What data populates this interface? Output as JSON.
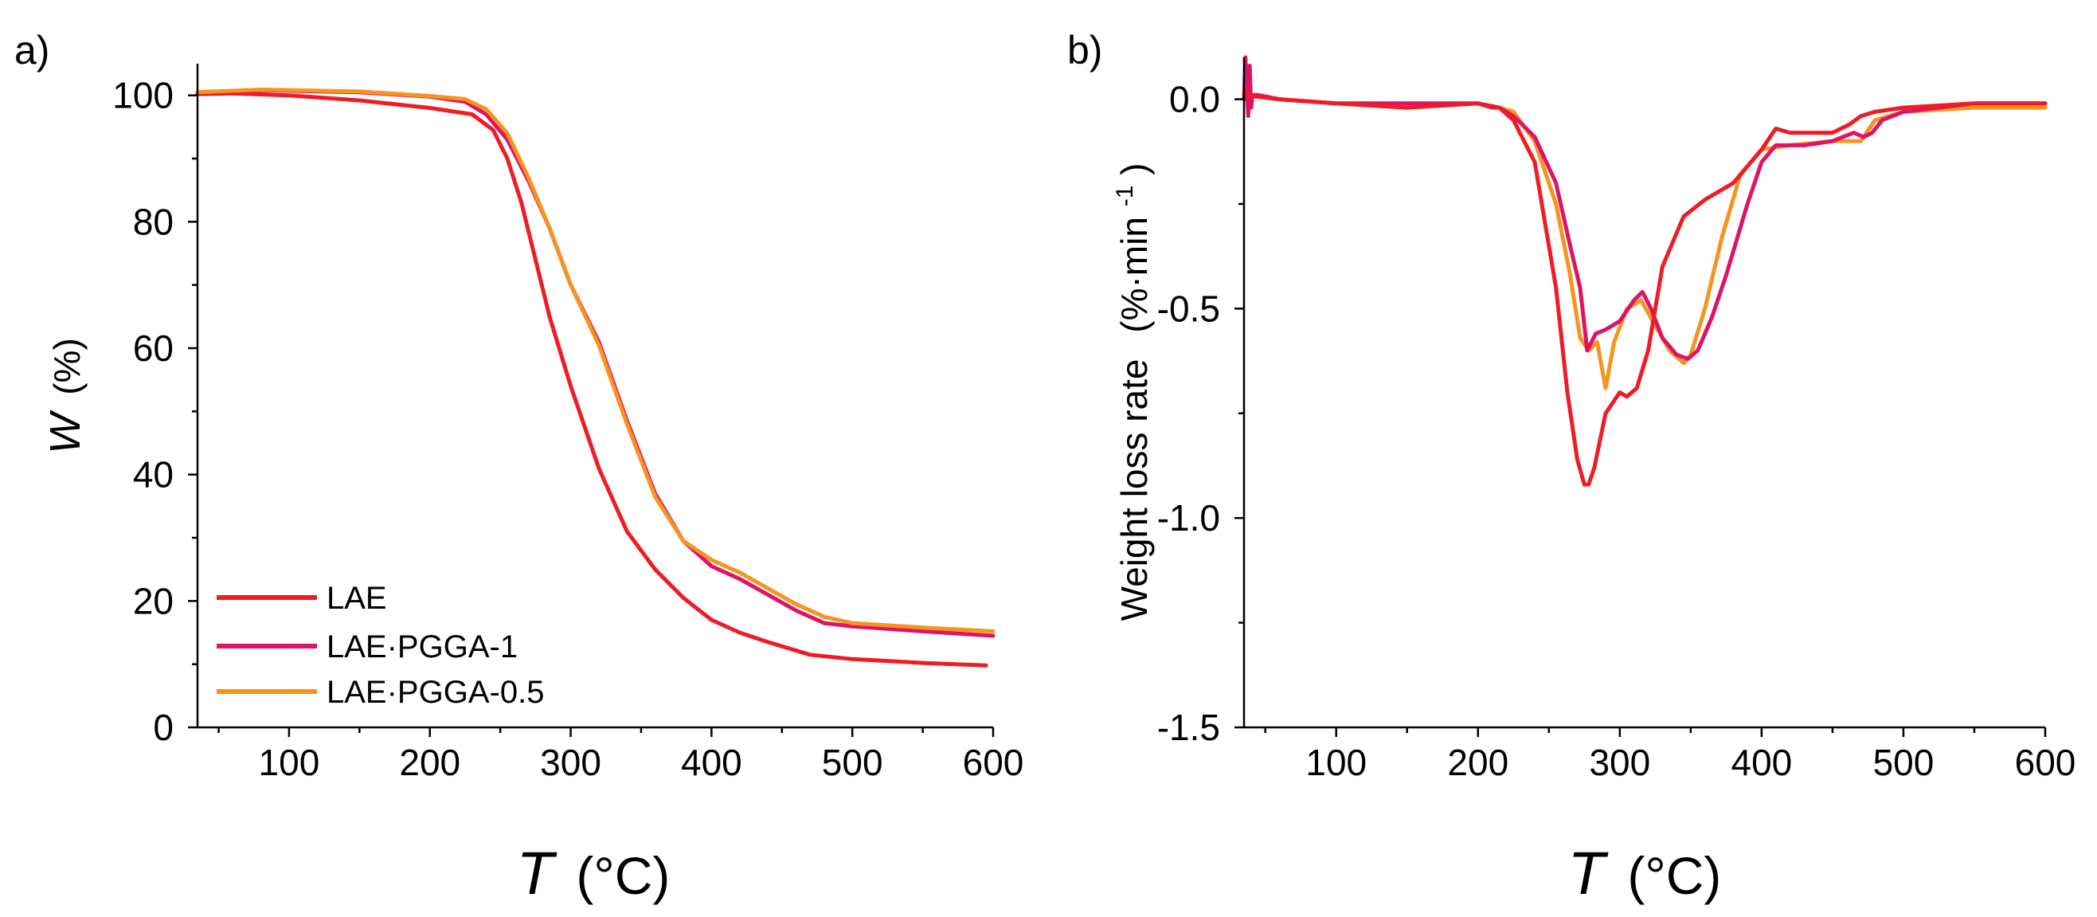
{
  "chart_data": [
    {
      "type": "line",
      "panel_label": "a)",
      "title": "",
      "xlabel": "T",
      "xunit": "(°C)",
      "ylabel": "W",
      "yunit": "(%)",
      "xlim": [
        35,
        600
      ],
      "ylim": [
        0,
        105
      ],
      "x_ticks": [
        100,
        200,
        300,
        400,
        500,
        600
      ],
      "x_tick_labels": [
        "100",
        "200",
        "300",
        "400",
        "500",
        "600"
      ],
      "y_ticks": [
        0,
        20,
        40,
        60,
        80,
        100
      ],
      "y_tick_labels": [
        "0",
        "20",
        "40",
        "60",
        "80",
        "100"
      ],
      "legend": [
        "LAE",
        "LAE·PGGA-1",
        "LAE·PGGA-0.5"
      ],
      "legend_position": "bottom-left",
      "series": [
        {
          "name": "LAE",
          "color": "#ee1c25",
          "x": [
            35,
            60,
            100,
            150,
            200,
            230,
            245,
            255,
            265,
            275,
            285,
            300,
            320,
            340,
            360,
            380,
            400,
            420,
            440,
            470,
            500,
            550,
            595
          ],
          "y": [
            100.2,
            100.3,
            100.0,
            99.2,
            98.0,
            97.0,
            94.5,
            90.0,
            83.0,
            74.0,
            65.0,
            54.0,
            41.0,
            31.0,
            25.0,
            20.5,
            17.0,
            15.0,
            13.5,
            11.5,
            10.8,
            10.2,
            9.8
          ]
        },
        {
          "name": "LAE·PGGA-1",
          "color": "#dd1466",
          "x": [
            35,
            80,
            150,
            200,
            225,
            240,
            255,
            270,
            285,
            300,
            320,
            340,
            360,
            380,
            400,
            420,
            440,
            460,
            480,
            500,
            550,
            600
          ],
          "y": [
            100.5,
            100.8,
            100.5,
            99.8,
            99.0,
            97.0,
            93.0,
            86.5,
            79.0,
            70.0,
            61.0,
            48.5,
            37.0,
            29.5,
            25.5,
            23.5,
            21.0,
            18.5,
            16.5,
            16.0,
            15.2,
            14.5
          ]
        },
        {
          "name": "LAE·PGGA-0.5",
          "color": "#f7931e",
          "x": [
            35,
            80,
            150,
            200,
            225,
            240,
            255,
            270,
            285,
            300,
            320,
            340,
            360,
            380,
            400,
            420,
            440,
            460,
            480,
            500,
            550,
            600
          ],
          "y": [
            100.5,
            100.9,
            100.6,
            99.9,
            99.4,
            97.8,
            94.0,
            87.0,
            79.0,
            70.0,
            60.5,
            48.0,
            36.5,
            29.5,
            26.5,
            24.5,
            22.0,
            19.5,
            17.5,
            16.5,
            15.8,
            15.2
          ]
        }
      ]
    },
    {
      "type": "line",
      "panel_label": "b)",
      "title": "",
      "xlabel": "T",
      "xunit": "(°C)",
      "ylabel": "Weight loss rate",
      "yunit": "(%·min",
      "yunit_sup": "-1",
      "yunit_close": ")",
      "xlim": [
        35,
        600
      ],
      "ylim": [
        -1.5,
        0.1
      ],
      "x_ticks": [
        100,
        200,
        300,
        400,
        500,
        600
      ],
      "x_tick_labels": [
        "100",
        "200",
        "300",
        "400",
        "500",
        "600"
      ],
      "y_ticks": [
        0.0,
        -0.5,
        -1.0,
        -1.5
      ],
      "y_tick_labels": [
        "0.0",
        "-0.5",
        "-1.0",
        "-1.5"
      ],
      "series": [
        {
          "name": "LAE·PGGA-0.5",
          "color": "#f7931e",
          "x": [
            35,
            60,
            100,
            150,
            200,
            215,
            225,
            240,
            255,
            265,
            272,
            278,
            284,
            290,
            296,
            305,
            315,
            325,
            335,
            345,
            350,
            360,
            372,
            385,
            400,
            420,
            450,
            470,
            480,
            500,
            550,
            600
          ],
          "y": [
            0.01,
            0.0,
            -0.01,
            -0.02,
            -0.01,
            -0.02,
            -0.03,
            -0.1,
            -0.25,
            -0.42,
            -0.57,
            -0.6,
            -0.58,
            -0.69,
            -0.58,
            -0.5,
            -0.48,
            -0.54,
            -0.6,
            -0.63,
            -0.61,
            -0.5,
            -0.33,
            -0.18,
            -0.12,
            -0.11,
            -0.1,
            -0.1,
            -0.05,
            -0.03,
            -0.02,
            -0.02
          ]
        },
        {
          "name": "LAE·PGGA-1",
          "color": "#dd1466",
          "x": [
            35,
            36,
            37,
            38,
            39,
            40,
            41,
            45,
            60,
            100,
            150,
            200,
            215,
            225,
            240,
            255,
            265,
            272,
            277,
            283,
            290,
            300,
            310,
            316,
            322,
            330,
            340,
            348,
            355,
            365,
            375,
            390,
            400,
            410,
            430,
            450,
            465,
            472,
            478,
            485,
            500,
            550,
            600
          ],
          "y": [
            0.0,
            0.1,
            0.02,
            -0.04,
            0.08,
            -0.02,
            0.01,
            0.01,
            0.0,
            -0.01,
            -0.01,
            -0.01,
            -0.02,
            -0.04,
            -0.09,
            -0.2,
            -0.35,
            -0.45,
            -0.6,
            -0.56,
            -0.55,
            -0.53,
            -0.48,
            -0.46,
            -0.5,
            -0.57,
            -0.61,
            -0.62,
            -0.6,
            -0.52,
            -0.42,
            -0.25,
            -0.15,
            -0.11,
            -0.11,
            -0.1,
            -0.08,
            -0.09,
            -0.08,
            -0.05,
            -0.03,
            -0.01,
            -0.01
          ]
        },
        {
          "name": "LAE",
          "color": "#ee1c25",
          "x": [
            35,
            60,
            100,
            150,
            200,
            210,
            215,
            225,
            240,
            255,
            263,
            270,
            275,
            278,
            282,
            290,
            300,
            305,
            312,
            320,
            330,
            345,
            360,
            380,
            400,
            410,
            420,
            450,
            462,
            470,
            480,
            500,
            550,
            600
          ],
          "y": [
            0.01,
            0.0,
            -0.01,
            -0.02,
            -0.01,
            -0.02,
            -0.02,
            -0.05,
            -0.15,
            -0.45,
            -0.7,
            -0.86,
            -0.92,
            -0.92,
            -0.88,
            -0.75,
            -0.7,
            -0.71,
            -0.69,
            -0.6,
            -0.4,
            -0.28,
            -0.24,
            -0.2,
            -0.12,
            -0.07,
            -0.08,
            -0.08,
            -0.06,
            -0.04,
            -0.03,
            -0.02,
            -0.01,
            -0.01
          ]
        }
      ]
    }
  ]
}
